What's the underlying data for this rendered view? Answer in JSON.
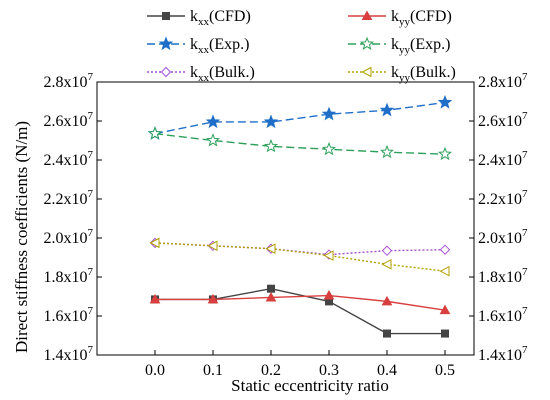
{
  "chart_data": {
    "type": "line",
    "xlabel": "Static eccentricity ratio",
    "ylabel": "Direct stiffness coefficients (N/m)",
    "x": [
      0.0,
      0.1,
      0.2,
      0.3,
      0.4,
      0.5
    ],
    "x_tick_labels": [
      "0.0",
      "0.1",
      "0.2",
      "0.3",
      "0.4",
      "0.5"
    ],
    "xlim": [
      -0.1,
      0.55
    ],
    "ylim": [
      14000000,
      28000000
    ],
    "y_ticks": [
      14000000,
      16000000,
      18000000,
      20000000,
      22000000,
      24000000,
      26000000,
      28000000
    ],
    "y_tick_labels": [
      {
        "mantissa": "1.4x10",
        "exp": "7"
      },
      {
        "mantissa": "1.6x10",
        "exp": "7"
      },
      {
        "mantissa": "1.8x10",
        "exp": "7"
      },
      {
        "mantissa": "2.0x10",
        "exp": "7"
      },
      {
        "mantissa": "2.2x10",
        "exp": "7"
      },
      {
        "mantissa": "2.4x10",
        "exp": "7"
      },
      {
        "mantissa": "2.6x10",
        "exp": "7"
      },
      {
        "mantissa": "2.8x10",
        "exp": "7"
      }
    ],
    "right_axis_mirrored": true,
    "grid": false,
    "legend_position": "top-center",
    "series": [
      {
        "name_main": "k",
        "name_sub": "xx",
        "name_suffix": "(CFD)",
        "color": "#444444",
        "dash": "solid",
        "marker": "square-filled",
        "values": [
          16850000,
          16850000,
          17400000,
          16750000,
          15100000,
          15100000
        ]
      },
      {
        "name_main": "k",
        "name_sub": "yy",
        "name_suffix": "(CFD)",
        "color": "#d93f3f",
        "dash": "solid",
        "marker": "triangle-filled",
        "values": [
          16850000,
          16850000,
          16950000,
          17050000,
          16750000,
          16300000
        ]
      },
      {
        "name_main": "k",
        "name_sub": "xx",
        "name_suffix": "(Exp.)",
        "color": "#1f6fc9",
        "dash": "dashed",
        "marker": "star-filled",
        "values": [
          25350000,
          25950000,
          25950000,
          26350000,
          26550000,
          26950000
        ]
      },
      {
        "name_main": "k",
        "name_sub": "yy",
        "name_suffix": "(Exp.)",
        "color": "#2ca05a",
        "dash": "dashed",
        "marker": "star-open",
        "values": [
          25350000,
          25000000,
          24700000,
          24550000,
          24400000,
          24300000
        ]
      },
      {
        "name_main": "k",
        "name_sub": "xx",
        "name_suffix": "(Bulk.)",
        "color": "#a64fd8",
        "dash": "dotted",
        "marker": "diamond-open",
        "values": [
          19750000,
          19600000,
          19450000,
          19150000,
          19350000,
          19400000
        ]
      },
      {
        "name_main": "k",
        "name_sub": "yy",
        "name_suffix": "(Bulk.)",
        "color": "#b3a000",
        "dash": "dotted",
        "marker": "triangle-left-open",
        "values": [
          19750000,
          19600000,
          19450000,
          19100000,
          18650000,
          18300000
        ]
      }
    ]
  }
}
